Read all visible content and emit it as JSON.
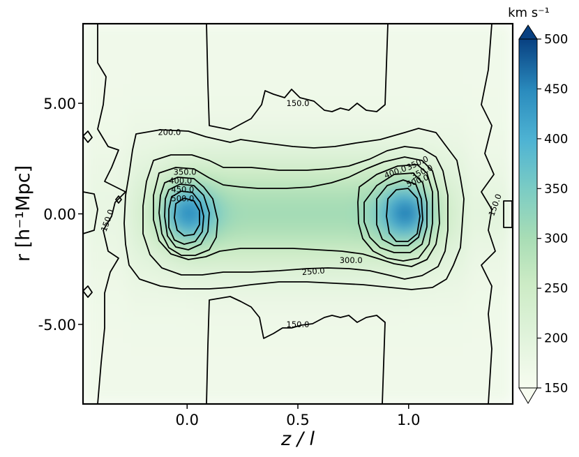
{
  "chart_data": {
    "type": "heatmap",
    "title": "",
    "xlabel": "z / l",
    "ylabel": "r [h⁻¹Mpc]",
    "xlim": [
      -0.47,
      1.47
    ],
    "ylim": [
      -8.6,
      8.6
    ],
    "x_ticks": [
      {
        "value": 0.0,
        "label": "0.0"
      },
      {
        "value": 0.5,
        "label": "0.5"
      },
      {
        "value": 1.0,
        "label": "1.0"
      }
    ],
    "y_ticks": [
      {
        "value": 5.0,
        "label": "5.00"
      },
      {
        "value": 0.0,
        "label": "0.00"
      },
      {
        "value": -5.0,
        "label": "-5.00"
      }
    ],
    "colormap": "GnBu",
    "colorbar": {
      "label": "km s⁻¹",
      "range": [
        150,
        500
      ],
      "extend": "both",
      "ticks": [
        {
          "value": 500,
          "label": "500"
        },
        {
          "value": 450,
          "label": "450"
        },
        {
          "value": 400,
          "label": "400"
        },
        {
          "value": 350,
          "label": "350"
        },
        {
          "value": 300,
          "label": "300"
        },
        {
          "value": 250,
          "label": "250"
        },
        {
          "value": 200,
          "label": "200"
        },
        {
          "value": 150,
          "label": "150"
        }
      ]
    },
    "contour_levels": [
      150,
      200,
      250,
      300,
      350,
      400,
      450,
      500
    ],
    "contour_labels": [
      {
        "text": "150.0",
        "x": 0.5,
        "y": 5.0,
        "rotation": 0
      },
      {
        "text": "150.0",
        "x": 0.5,
        "y": -5.0,
        "rotation": 0
      },
      {
        "text": "150.0",
        "x": -0.36,
        "y": -0.3,
        "rotation": -70
      },
      {
        "text": "150.0",
        "x": 1.39,
        "y": 0.4,
        "rotation": -70
      },
      {
        "text": "200.0",
        "x": -0.08,
        "y": 3.7,
        "rotation": 0
      },
      {
        "text": "250.0",
        "x": 0.57,
        "y": -2.6,
        "rotation": -5
      },
      {
        "text": "300.0",
        "x": 0.74,
        "y": -2.1,
        "rotation": 0
      },
      {
        "text": "350.0",
        "x": -0.01,
        "y": 1.9,
        "rotation": 0
      },
      {
        "text": "400.0",
        "x": -0.03,
        "y": 1.5,
        "rotation": 0
      },
      {
        "text": "450.0",
        "x": -0.02,
        "y": 1.1,
        "rotation": 0
      },
      {
        "text": "500.0",
        "x": -0.02,
        "y": 0.7,
        "rotation": 0
      },
      {
        "text": "350.0",
        "x": 1.04,
        "y": 2.3,
        "rotation": -25
      },
      {
        "text": "400.0",
        "x": 0.94,
        "y": 1.9,
        "rotation": -20
      },
      {
        "text": "500.0",
        "x": 1.04,
        "y": 1.5,
        "rotation": -20
      },
      {
        "text": "350.0",
        "x": 1.06,
        "y": 1.9,
        "rotation": -25
      }
    ],
    "features": [
      {
        "name": "left-peak",
        "center_x": 0.0,
        "center_y": 0.0,
        "peak_value": 510
      },
      {
        "name": "right-peak",
        "center_x": 1.0,
        "center_y": 0.0,
        "peak_value": 520
      },
      {
        "name": "bridge",
        "center_x": 0.5,
        "center_y": 0.0,
        "peak_value": 330
      }
    ]
  }
}
